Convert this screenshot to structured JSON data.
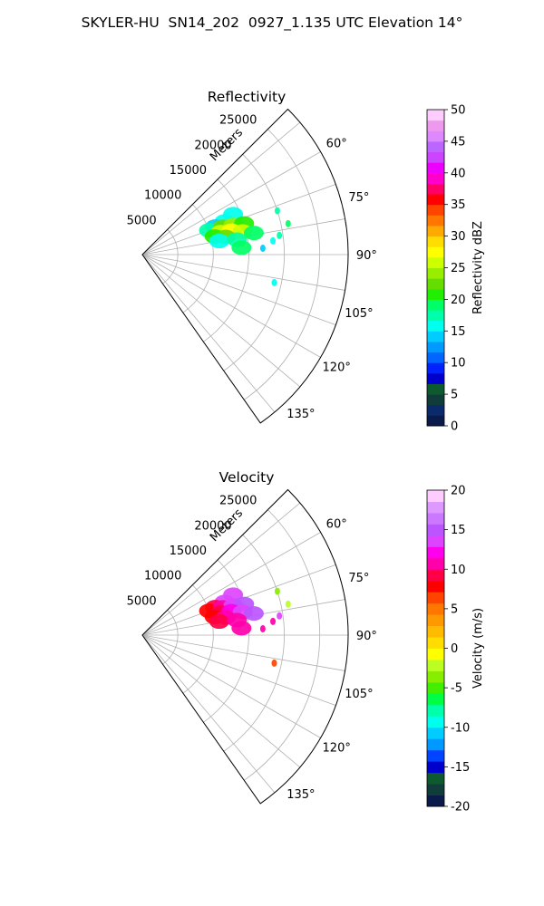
{
  "title": "SKYLER-HU  SN14_202  0927_1.135 UTC Elevation 14°",
  "chart_data": [
    {
      "type": "heatmap",
      "title": "Reflectivity",
      "radial_label": "Meters",
      "radial_ticks": [
        "5000",
        "10000",
        "15000",
        "20000",
        "25000"
      ],
      "angle_ticks": [
        "60°",
        "75°",
        "90°",
        "105°",
        "120°",
        "135°"
      ],
      "colorbar": {
        "label": "Reflectivity dBZ",
        "ticks": [
          "0",
          "5",
          "10",
          "15",
          "20",
          "25",
          "30",
          "35",
          "40",
          "45",
          "50"
        ],
        "range": [
          0,
          50
        ],
        "colors": [
          "#0a1a4a",
          "#0b2a6b",
          "#103d3a",
          "#0d5a2f",
          "#0000cc",
          "#0022ff",
          "#0066ff",
          "#0099ff",
          "#00ccff",
          "#00ffee",
          "#00ffaa",
          "#00ff66",
          "#22ee00",
          "#66dd00",
          "#99ee00",
          "#ccff00",
          "#ffff00",
          "#ffdd00",
          "#ffaa00",
          "#ff7700",
          "#ff4400",
          "#ff0000",
          "#ff0066",
          "#ff00cc",
          "#ee00ff",
          "#cc44ff",
          "#bb66ff",
          "#dd88ff",
          "#ee99ee",
          "#ffccff"
        ]
      },
      "cells": [
        {
          "az": 66,
          "r": 14000,
          "v": 15
        },
        {
          "az": 68,
          "r": 12500,
          "v": 16
        },
        {
          "az": 69,
          "r": 11000,
          "v": 14
        },
        {
          "az": 70,
          "r": 10000,
          "v": 18
        },
        {
          "az": 71,
          "r": 12000,
          "v": 22
        },
        {
          "az": 72,
          "r": 13500,
          "v": 24
        },
        {
          "az": 73,
          "r": 15000,
          "v": 21
        },
        {
          "az": 74,
          "r": 11500,
          "v": 26
        },
        {
          "az": 75,
          "r": 13000,
          "v": 27
        },
        {
          "az": 76,
          "r": 10500,
          "v": 20
        },
        {
          "az": 77,
          "r": 14500,
          "v": 25
        },
        {
          "az": 78,
          "r": 12000,
          "v": 23
        },
        {
          "az": 79,
          "r": 16000,
          "v": 19
        },
        {
          "az": 80,
          "r": 11000,
          "v": 16
        },
        {
          "az": 81,
          "r": 13500,
          "v": 18
        },
        {
          "az": 82,
          "r": 19500,
          "v": 17
        },
        {
          "az": 84,
          "r": 18500,
          "v": 15
        },
        {
          "az": 86,
          "r": 14000,
          "v": 19
        },
        {
          "az": 87,
          "r": 17000,
          "v": 14
        },
        {
          "az": 72,
          "r": 20000,
          "v": 18
        },
        {
          "az": 78,
          "r": 21000,
          "v": 19
        },
        {
          "az": 102,
          "r": 19000,
          "v": 16
        }
      ]
    },
    {
      "type": "heatmap",
      "title": "Velocity",
      "radial_label": "Meters",
      "radial_ticks": [
        "5000",
        "10000",
        "15000",
        "20000",
        "25000"
      ],
      "angle_ticks": [
        "60°",
        "75°",
        "90°",
        "105°",
        "120°",
        "135°"
      ],
      "colorbar": {
        "label": "Velocity (m/s)",
        "ticks": [
          "-20",
          "-15",
          "-10",
          "-5",
          "0",
          "5",
          "10",
          "15",
          "20"
        ],
        "range": [
          -20,
          20
        ],
        "colors": [
          "#0a1a4a",
          "#103d3a",
          "#0d5a2f",
          "#0000cc",
          "#0044ff",
          "#0099ff",
          "#00ccff",
          "#00ffee",
          "#00ffaa",
          "#00ff44",
          "#44ee00",
          "#88ee00",
          "#bbff22",
          "#ffff00",
          "#ffdd00",
          "#ffbb00",
          "#ff9900",
          "#ff7700",
          "#ff4400",
          "#ff0000",
          "#ff0044",
          "#ff00aa",
          "#ff00ee",
          "#dd44ff",
          "#bb55ff",
          "#cc77ff",
          "#dd99ff",
          "#ffccff"
        ]
      },
      "cells": [
        {
          "az": 66,
          "r": 14000,
          "v": 14
        },
        {
          "az": 68,
          "r": 12500,
          "v": 13
        },
        {
          "az": 69,
          "r": 11000,
          "v": 9
        },
        {
          "az": 70,
          "r": 10000,
          "v": 8
        },
        {
          "az": 71,
          "r": 12000,
          "v": 11
        },
        {
          "az": 72,
          "r": 13500,
          "v": 14
        },
        {
          "az": 73,
          "r": 15000,
          "v": 15
        },
        {
          "az": 74,
          "r": 11500,
          "v": 9
        },
        {
          "az": 75,
          "r": 13000,
          "v": 12
        },
        {
          "az": 76,
          "r": 10500,
          "v": 8
        },
        {
          "az": 77,
          "r": 14500,
          "v": 14
        },
        {
          "az": 78,
          "r": 12000,
          "v": 10
        },
        {
          "az": 79,
          "r": 16000,
          "v": 15
        },
        {
          "az": 80,
          "r": 11000,
          "v": 9
        },
        {
          "az": 81,
          "r": 13500,
          "v": 11
        },
        {
          "az": 82,
          "r": 19500,
          "v": 14
        },
        {
          "az": 84,
          "r": 18500,
          "v": 11
        },
        {
          "az": 86,
          "r": 14000,
          "v": 10
        },
        {
          "az": 87,
          "r": 17000,
          "v": 11
        },
        {
          "az": 72,
          "r": 20000,
          "v": -3
        },
        {
          "az": 78,
          "r": 21000,
          "v": -2
        },
        {
          "az": 102,
          "r": 19000,
          "v": 6
        }
      ]
    }
  ]
}
